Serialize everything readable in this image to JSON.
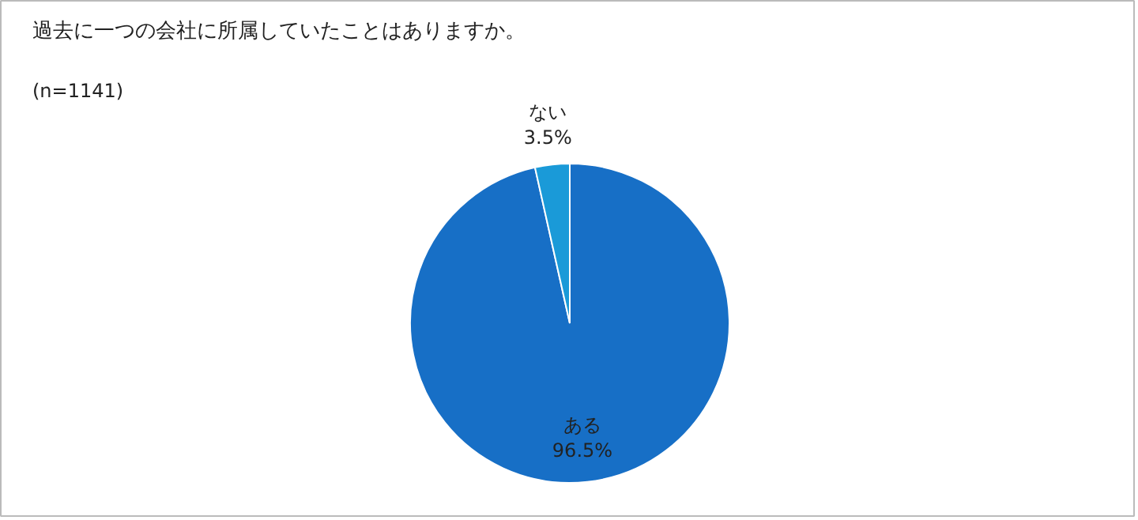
{
  "chart_data": {
    "type": "pie",
    "title": "過去に一つの会社に所属していたことはありますか。",
    "subtitle": "(n=1141)",
    "categories": [
      "ある",
      "ない"
    ],
    "values": [
      96.5,
      3.5
    ],
    "colors": [
      "#176fc6",
      "#1a9ad8"
    ],
    "value_labels": [
      "96.5%",
      "3.5%"
    ]
  }
}
